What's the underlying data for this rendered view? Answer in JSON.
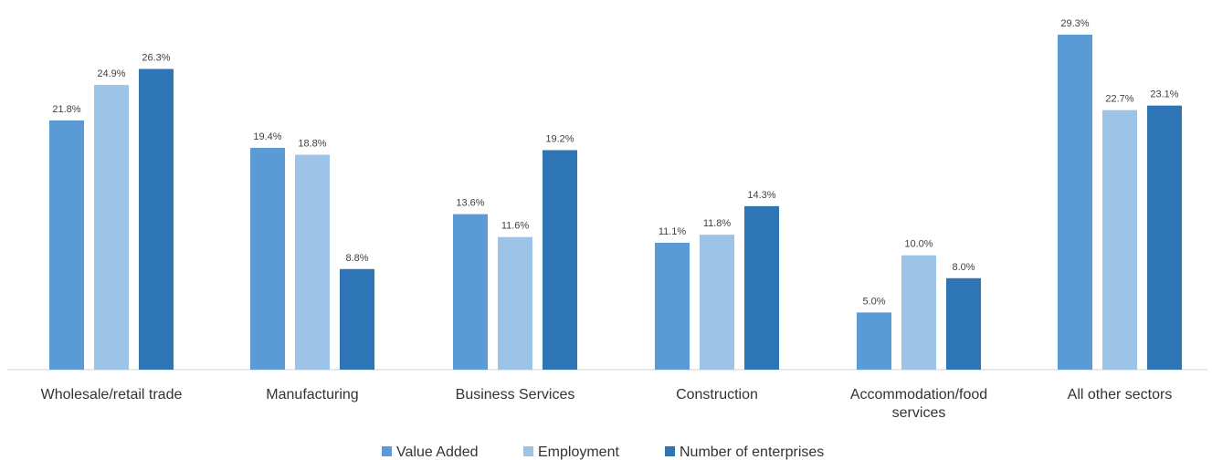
{
  "chart_data": {
    "type": "bar",
    "categories": [
      [
        "Wholesale/retail trade"
      ],
      [
        "Manufacturing"
      ],
      [
        "Business Services"
      ],
      [
        "Construction"
      ],
      [
        "Accommodation/food",
        "services"
      ],
      [
        "All other sectors"
      ]
    ],
    "series": [
      {
        "name": "Value Added",
        "color": "#5b9bd5",
        "values": [
          21.8,
          19.4,
          13.6,
          11.1,
          5.0,
          29.3
        ],
        "labels": [
          "21.8%",
          "19.4%",
          "13.6%",
          "11.1%",
          "5.0%",
          "29.3%"
        ]
      },
      {
        "name": "Employment",
        "color": "#9dc3e6",
        "values": [
          24.9,
          18.8,
          11.6,
          11.8,
          10.0,
          22.7
        ],
        "labels": [
          "24.9%",
          "18.8%",
          "11.6%",
          "11.8%",
          "10.0%",
          "22.7%"
        ]
      },
      {
        "name": "Number of enterprises",
        "color": "#2e75b6",
        "values": [
          26.3,
          8.8,
          19.2,
          14.3,
          8.0,
          23.1
        ],
        "labels": [
          "26.3%",
          "8.8%",
          "19.2%",
          "14.3%",
          "8.0%",
          "23.1%"
        ]
      }
    ],
    "unit": "%",
    "ylim": [
      0,
      29.3
    ],
    "grid": false,
    "legend": "bottom-center",
    "title": "",
    "xlabel": "",
    "ylabel": ""
  }
}
